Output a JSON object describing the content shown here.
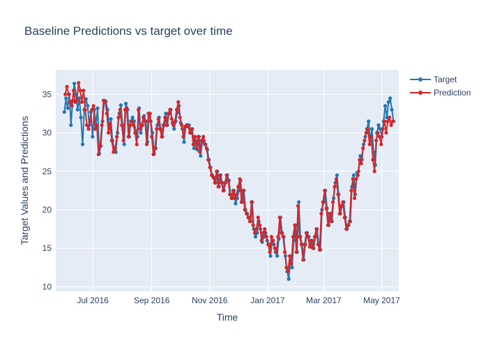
{
  "chart_data": {
    "type": "line",
    "title": "Baseline Predictions vs target over time",
    "xlabel": "Time",
    "ylabel": "Target Values and Predictions",
    "xlim": [
      "2016-05-23",
      "2017-05-19"
    ],
    "ylim": [
      9.4,
      38.2
    ],
    "x_ticks": [
      {
        "value": "2016-07-01",
        "label": "Jul 2016"
      },
      {
        "value": "2016-09-01",
        "label": "Sep 2016"
      },
      {
        "value": "2016-11-01",
        "label": "Nov 2016"
      },
      {
        "value": "2017-01-01",
        "label": "Jan 2017"
      },
      {
        "value": "2017-03-01",
        "label": "Mar 2017"
      },
      {
        "value": "2017-05-01",
        "label": "May 2017"
      }
    ],
    "y_ticks": [
      10,
      15,
      20,
      25,
      30,
      35
    ],
    "grid": true,
    "legend": "top-right",
    "background": "#e5ecf6",
    "series": [
      {
        "name": "Target",
        "color": "#1f77b4",
        "start_date": "2016-06-01",
        "values": [
          32.7,
          34.5,
          33.2,
          35.0,
          31.0,
          34.2,
          36.4,
          35.0,
          33.0,
          34.5,
          32.0,
          28.5,
          33.0,
          34.4,
          33.5,
          31.0,
          32.7,
          29.5,
          33.0,
          31.0,
          33.2,
          27.3,
          28.3,
          31.5,
          34.2,
          34.1,
          33.0,
          30.5,
          31.8,
          29.0,
          28.0,
          27.5,
          30.0,
          32.5,
          33.6,
          31.0,
          28.5,
          33.8,
          33.0,
          29.5,
          31.5,
          32.0,
          31.5,
          30.2,
          29.5,
          33.2,
          30.0,
          31.0,
          32.2,
          31.5,
          28.8,
          32.5,
          31.5,
          30.0,
          27.3,
          28.0,
          31.0,
          32.0,
          30.5,
          29.5,
          31.0,
          32.5,
          31.0,
          32.5,
          33.0,
          31.3,
          30.5,
          31.5,
          32.6,
          33.5,
          31.3,
          30.5,
          28.8,
          30.8,
          31.0,
          31.0,
          30.0,
          30.5,
          28.0,
          29.0,
          27.8,
          29.5,
          27.0,
          28.8,
          29.0,
          28.5,
          27.8,
          26.5,
          25.5,
          24.5,
          24.2,
          23.5,
          25.0,
          23.0,
          24.5,
          23.5,
          22.5,
          23.5,
          24.5,
          23.8,
          22.0,
          21.5,
          22.5,
          20.8,
          21.5,
          22.5,
          23.8,
          21.0,
          22.5,
          20.0,
          19.5,
          19.0,
          18.5,
          21.0,
          17.5,
          16.5,
          17.0,
          18.5,
          17.5,
          15.8,
          16.5,
          17.0,
          16.0,
          15.5,
          14.0,
          16.0,
          15.5,
          14.5,
          14.0,
          16.2,
          19.0,
          17.0,
          16.5,
          14.0,
          12.0,
          11.0,
          13.5,
          12.5,
          16.0,
          18.0,
          14.5,
          21.0,
          16.5,
          15.5,
          13.5,
          15.5,
          17.0,
          16.5,
          15.2,
          16.0,
          15.0,
          16.5,
          17.5,
          15.5,
          14.8,
          20.0,
          21.0,
          22.5,
          20.2,
          18.0,
          19.5,
          18.5,
          21.5,
          23.5,
          24.5,
          22.0,
          19.5,
          20.5,
          21.0,
          19.0,
          17.5,
          18.0,
          18.5,
          23.0,
          24.5,
          22.0,
          24.8,
          25.0,
          27.0,
          26.5,
          28.5,
          29.5,
          30.5,
          31.5,
          29.0,
          30.5,
          27.5,
          25.8,
          30.0,
          31.0,
          30.5,
          29.5,
          31.5,
          33.5,
          32.0,
          34.0,
          34.5,
          33.0,
          31.5
        ]
      },
      {
        "name": "Prediction",
        "color": "#d62728",
        "start_date": "2016-06-02",
        "values": [
          35.0,
          36.0,
          35.0,
          34.0,
          33.5,
          35.5,
          34.0,
          34.2,
          36.5,
          35.5,
          34.0,
          35.5,
          33.0,
          31.0,
          30.5,
          31.5,
          33.0,
          33.5,
          30.5,
          31.0,
          27.2,
          28.3,
          31.0,
          34.2,
          34.0,
          32.5,
          30.0,
          31.2,
          29.0,
          27.5,
          28.0,
          29.5,
          32.0,
          33.0,
          31.0,
          29.0,
          33.0,
          33.2,
          29.5,
          31.0,
          31.5,
          31.0,
          30.0,
          28.5,
          33.0,
          30.5,
          31.0,
          32.0,
          31.5,
          28.5,
          32.5,
          32.5,
          29.5,
          27.2,
          28.0,
          30.5,
          31.8,
          30.5,
          29.5,
          31.0,
          32.0,
          31.0,
          32.5,
          33.0,
          31.8,
          31.0,
          31.5,
          33.0,
          34.0,
          32.0,
          31.0,
          29.5,
          30.8,
          31.0,
          30.8,
          30.0,
          30.5,
          28.5,
          29.5,
          28.0,
          29.5,
          27.5,
          29.0,
          29.5,
          28.5,
          28.0,
          26.5,
          25.5,
          24.5,
          24.2,
          23.5,
          25.0,
          23.0,
          24.5,
          23.5,
          22.5,
          23.5,
          24.5,
          23.8,
          22.0,
          21.5,
          22.5,
          21.5,
          22.0,
          23.0,
          24.0,
          21.0,
          22.5,
          20.0,
          19.5,
          19.0,
          18.5,
          21.0,
          18.0,
          17.0,
          17.5,
          19.0,
          18.0,
          16.0,
          17.0,
          17.5,
          16.5,
          15.5,
          14.5,
          16.5,
          16.0,
          15.0,
          14.5,
          16.5,
          19.0,
          17.0,
          16.5,
          14.5,
          12.5,
          12.0,
          14.0,
          13.0,
          16.5,
          18.0,
          14.5,
          20.5,
          16.5,
          15.5,
          13.5,
          15.5,
          17.0,
          16.5,
          15.2,
          16.0,
          15.0,
          16.5,
          17.5,
          15.5,
          14.8,
          19.5,
          21.0,
          22.5,
          20.2,
          18.0,
          19.5,
          18.5,
          21.0,
          23.0,
          24.0,
          22.0,
          19.5,
          20.5,
          21.0,
          19.0,
          17.5,
          18.0,
          18.5,
          22.5,
          24.0,
          21.5,
          24.0,
          24.5,
          26.5,
          26.0,
          28.0,
          29.0,
          30.0,
          30.5,
          28.5,
          29.5,
          26.5,
          25.0,
          29.0,
          30.0,
          29.5,
          28.5,
          30.5,
          31.5,
          30.0,
          31.5,
          32.0,
          31.0,
          31.5
        ]
      }
    ]
  }
}
